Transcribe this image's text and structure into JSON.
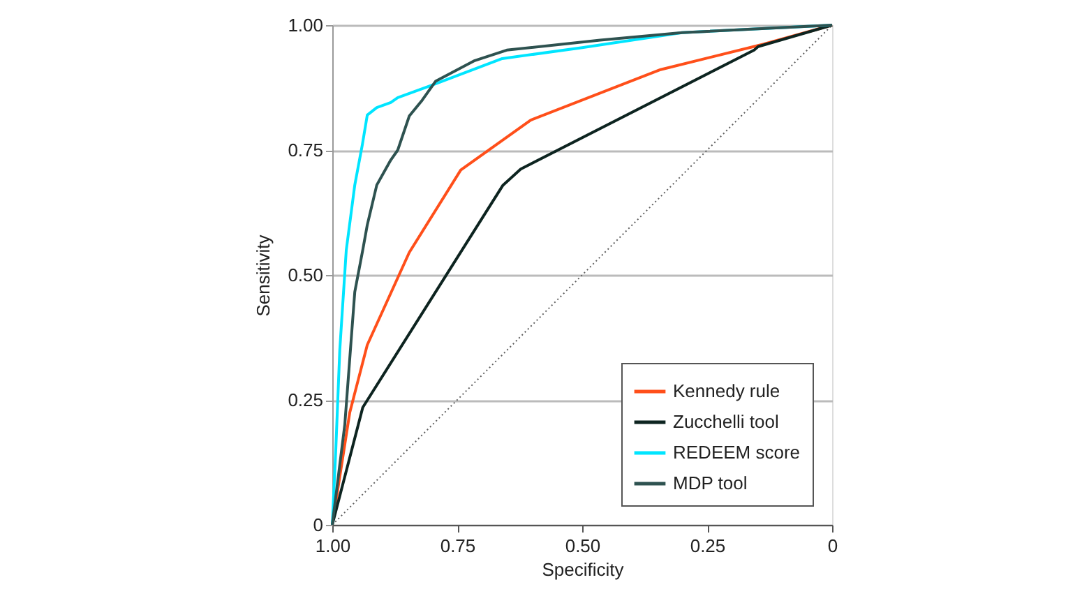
{
  "chart_data": {
    "type": "line",
    "xlabel": "Specificity",
    "ylabel": "Sensitivity",
    "xlim": [
      1,
      0
    ],
    "ylim": [
      0,
      1
    ],
    "xticks": [
      {
        "value": 1,
        "label": "1.00"
      },
      {
        "value": 0.75,
        "label": "0.75"
      },
      {
        "value": 0.5,
        "label": "0.50"
      },
      {
        "value": 0.25,
        "label": "0.25"
      },
      0
    ],
    "yticks": [
      0,
      {
        "value": 0.25,
        "label": "0.25"
      },
      {
        "value": 0.5,
        "label": "0.50"
      },
      {
        "value": 0.75,
        "label": "0.75"
      },
      {
        "value": 1,
        "label": "1.00"
      }
    ],
    "grid": "y",
    "legend": "bottom right",
    "line_style": "solid",
    "marker": "none",
    "series": [
      {
        "type": "line",
        "color": "#606060",
        "line_style": "dotted",
        "x": [
          1,
          0
        ],
        "values": [
          0,
          1
        ]
      },
      {
        "name": "Kennedy rule",
        "color": "#ff4f1a",
        "x": [
          1,
          0.965,
          0.93,
          0.846,
          0.743,
          0.603,
          0.343,
          0.137,
          0
        ],
        "values": [
          0,
          0.225,
          0.36,
          0.545,
          0.71,
          0.81,
          0.911,
          0.962,
          1
        ]
      },
      {
        "name": "Zucchelli tool",
        "color": "#0d2420",
        "x": [
          1,
          0.939,
          0.659,
          0.623,
          0.156,
          0.148,
          0
        ],
        "values": [
          0,
          0.235,
          0.679,
          0.712,
          0.95,
          0.957,
          1
        ]
      },
      {
        "name": "REDEEM score",
        "color": "#00e5ff",
        "x": [
          1,
          0.993,
          0.985,
          0.972,
          0.955,
          0.94,
          0.93,
          0.911,
          0.883,
          0.869,
          0.8,
          0.66,
          0.5,
          0.3,
          0
        ],
        "values": [
          0,
          0.15,
          0.35,
          0.55,
          0.68,
          0.76,
          0.82,
          0.835,
          0.845,
          0.855,
          0.88,
          0.933,
          0.955,
          0.985,
          1
        ]
      },
      {
        "name": "MDP tool",
        "color": "#2e5250",
        "x": [
          1,
          0.975,
          0.955,
          0.939,
          0.93,
          0.911,
          0.883,
          0.869,
          0.846,
          0.82,
          0.793,
          0.715,
          0.651,
          0.464,
          0.3,
          0
        ],
        "values": [
          0,
          0.2,
          0.466,
          0.55,
          0.6,
          0.68,
          0.73,
          0.75,
          0.818,
          0.85,
          0.888,
          0.929,
          0.95,
          0.97,
          0.985,
          1
        ]
      }
    ]
  }
}
